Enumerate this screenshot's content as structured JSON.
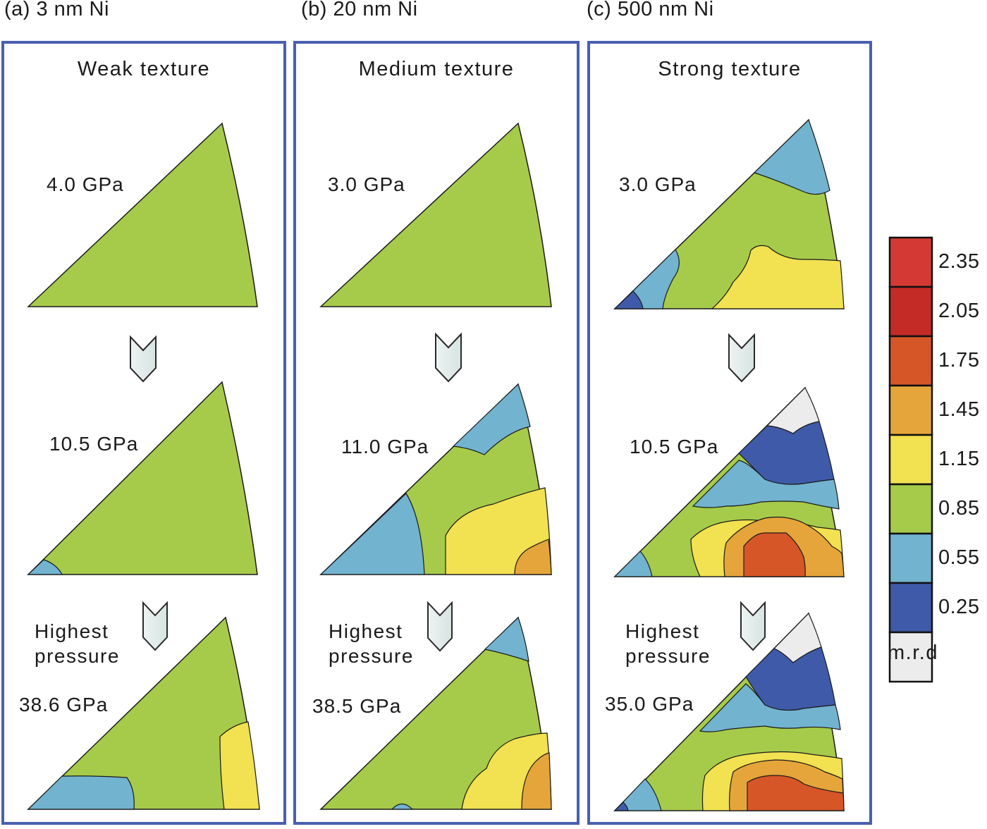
{
  "columns": [
    {
      "title": "(a) 3 nm Ni",
      "texture": "Weak texture",
      "pressures": [
        "4.0 GPa",
        "10.5 GPa",
        "38.6 GPa"
      ]
    },
    {
      "title": "(b) 20 nm Ni",
      "texture": "Medium texture",
      "pressures": [
        "3.0 GPa",
        "11.0 GPa",
        "38.5 GPa"
      ]
    },
    {
      "title": "(c) 500 nm Ni",
      "texture": "Strong texture",
      "pressures": [
        "3.0 GPa",
        "10.5 GPa",
        "35.0 GPa"
      ]
    }
  ],
  "highest_label_line1": "Highest",
  "highest_label_line2": "pressure",
  "colorbar": {
    "unit": "m.r.d",
    "ticks": [
      "2.35",
      "2.05",
      "1.75",
      "1.45",
      "1.15",
      "0.85",
      "0.55",
      "0.25"
    ],
    "colors": [
      "#d43a33",
      "#c42a26",
      "#d65628",
      "#e5a53a",
      "#f2e150",
      "#a6cb4a",
      "#72b3cf",
      "#3f5aa8",
      "#ececec"
    ]
  }
}
